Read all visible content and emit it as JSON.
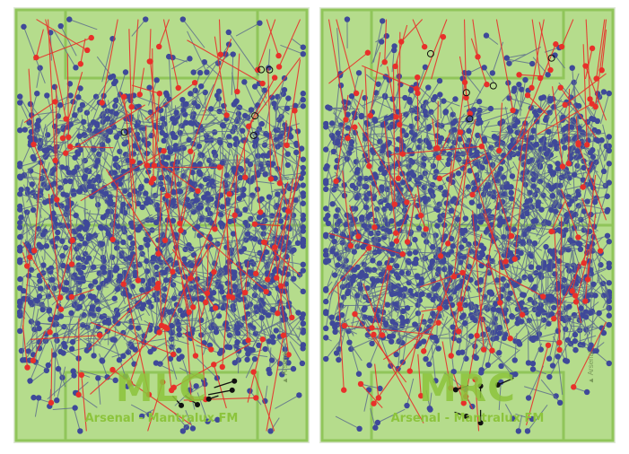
{
  "chart_data": [
    {
      "type": "scatter",
      "label": "MLC",
      "footer": "Arsenal - Mantralux FM",
      "side_label": "▲ Arsenal",
      "colors": {
        "pitch": "#b5dc8c",
        "lines": "#90c55a",
        "completed": "#3f4999",
        "failed": "#e8302a",
        "key": "#111111"
      },
      "seed": 11,
      "pass_counts": {
        "completed": 1350,
        "failed": 120
      },
      "completed_pass_zone": {
        "x": [
          0,
          100
        ],
        "y": [
          22,
          78
        ]
      }
    },
    {
      "type": "scatter",
      "label": "MRC",
      "footer": "Arsenal - Mantralux FM",
      "side_label": "▲ Arsenal",
      "colors": {
        "pitch": "#b5dc8c",
        "lines": "#90c55a",
        "completed": "#3f4999",
        "failed": "#e8302a",
        "key": "#111111"
      },
      "seed": 29,
      "pass_counts": {
        "completed": 1350,
        "failed": 120
      },
      "completed_pass_zone": {
        "x": [
          0,
          100
        ],
        "y": [
          22,
          78
        ]
      }
    }
  ]
}
